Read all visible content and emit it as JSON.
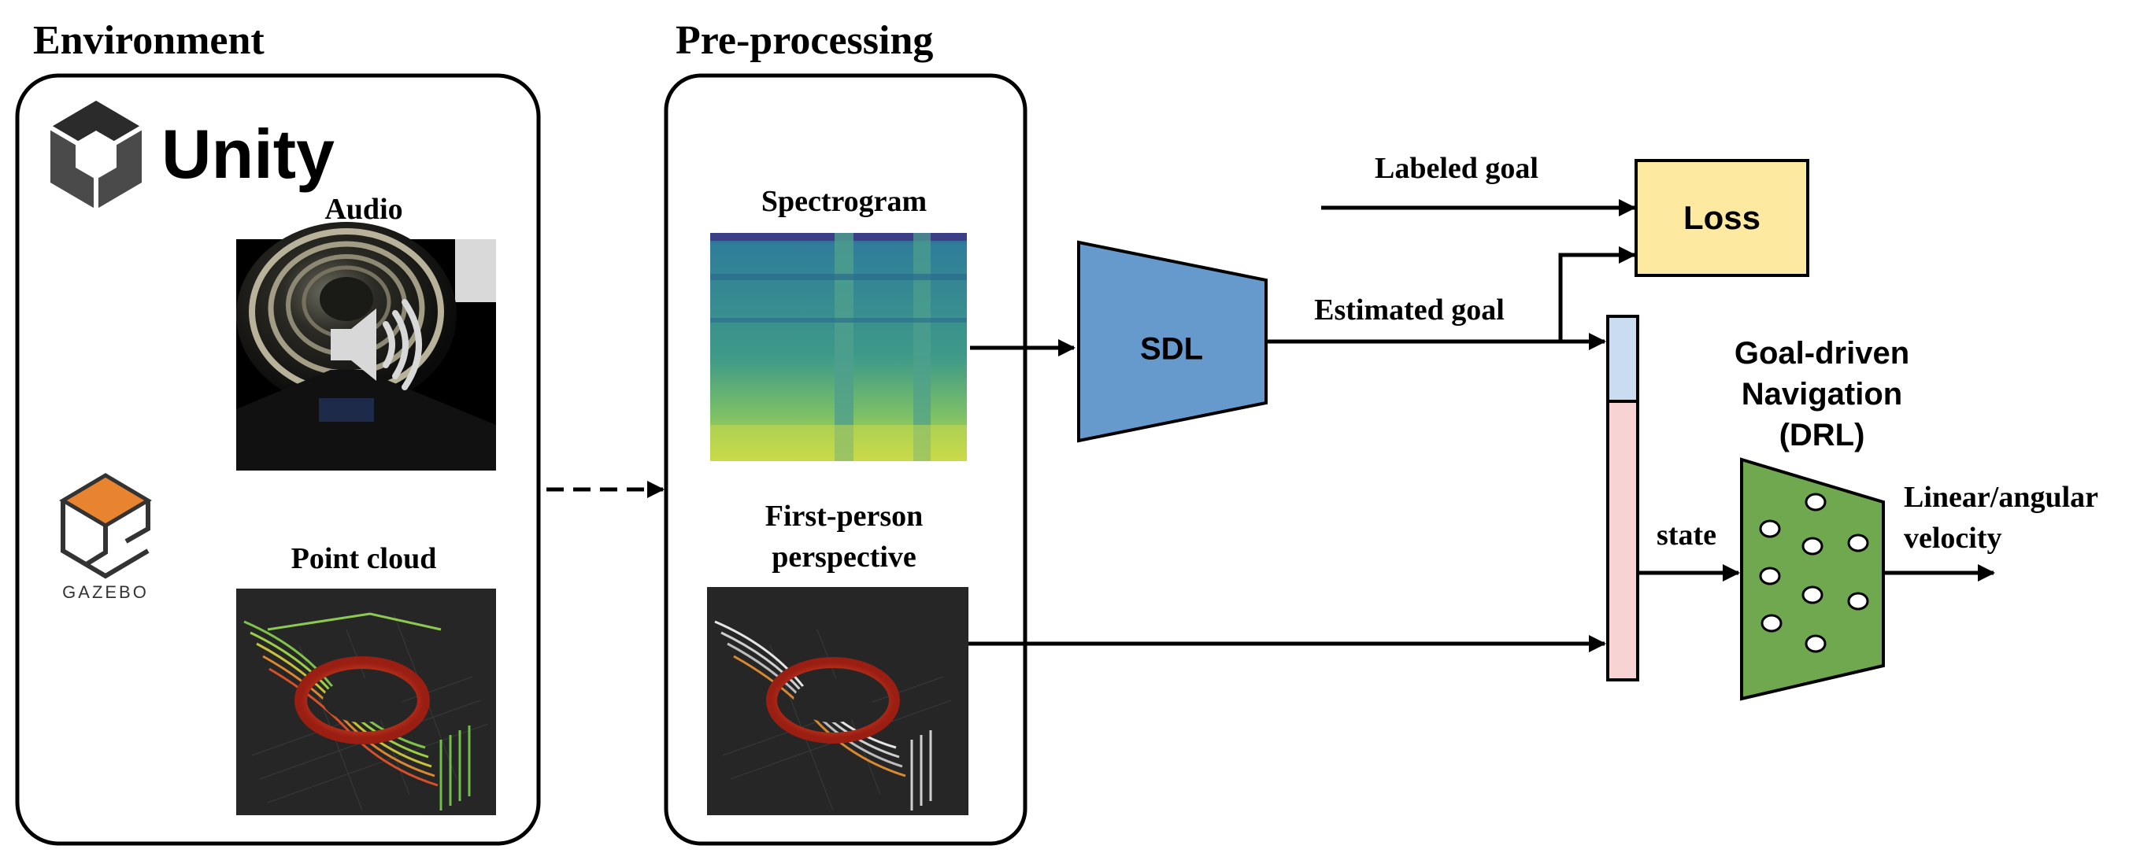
{
  "sections": {
    "environment": "Environment",
    "preprocessing": "Pre-processing"
  },
  "environment": {
    "unity_logo_text": "Unity",
    "gazebo_logo_text": "GAZEBO",
    "audio_label": "Audio",
    "pointcloud_label": "Point cloud"
  },
  "preprocessing": {
    "spectrogram_label": "Spectrogram",
    "fpp_label_line1": "First-person",
    "fpp_label_line2": "perspective"
  },
  "blocks": {
    "sdl": "SDL",
    "loss": "Loss",
    "drl_line1": "Goal-driven",
    "drl_line2": "Navigation",
    "drl_line3": "(DRL)"
  },
  "arrows": {
    "labeled_goal": "Labeled goal",
    "estimated_goal": "Estimated goal",
    "state": "state",
    "output_line1": "Linear/angular",
    "output_line2": "velocity"
  },
  "colors": {
    "sdl_fill": "#6699cc",
    "loss_fill": "#fde9a0",
    "drl_fill": "#70a84f",
    "state_top": "#c9dcf0",
    "state_bottom": "#f7d3d3",
    "gazebo_orange": "#e8832f",
    "spectrogram_blue": "#3d7f96",
    "spectrogram_yellow": "#c8d84a"
  }
}
